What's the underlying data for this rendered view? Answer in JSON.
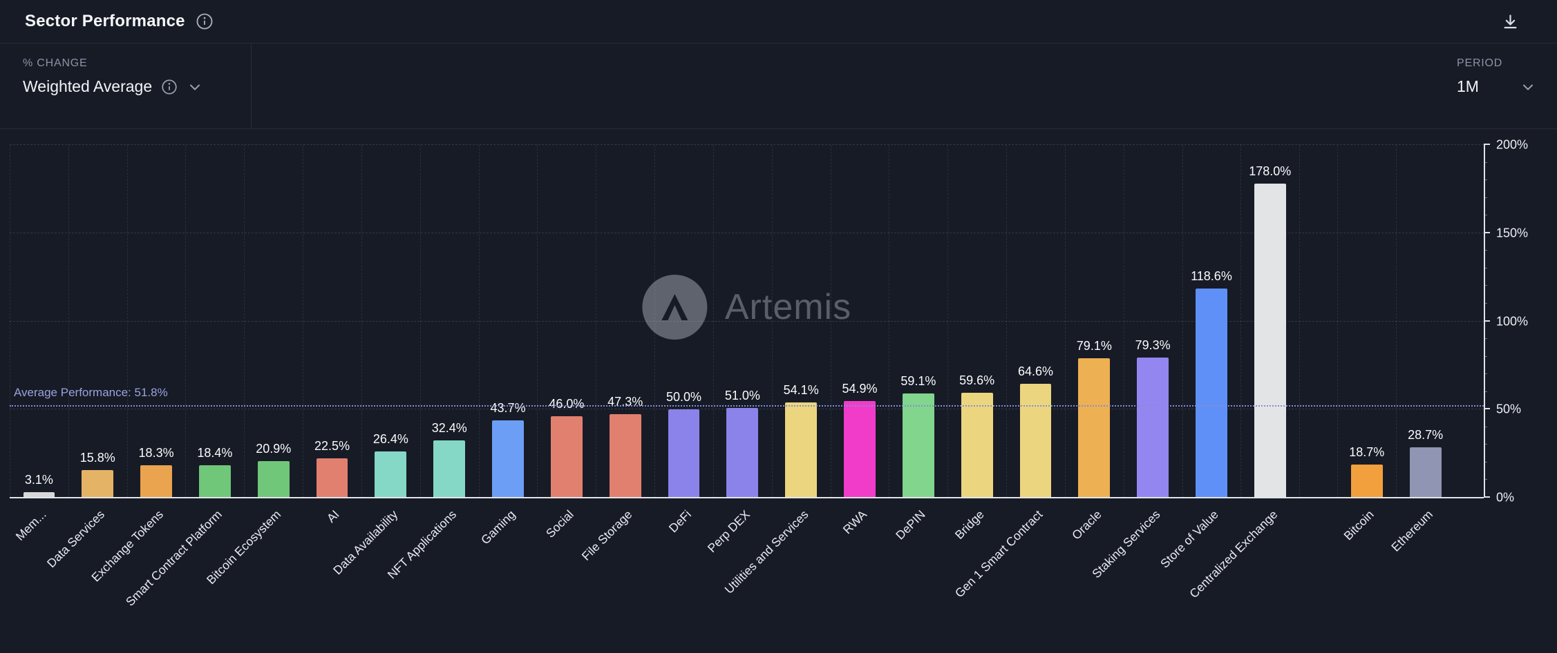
{
  "header": {
    "title": "Sector Performance"
  },
  "controls": {
    "metric": {
      "label": "% CHANGE",
      "value": "Weighted Average"
    },
    "period": {
      "label": "PERIOD",
      "value": "1M"
    }
  },
  "watermark": {
    "text": "Artemis"
  },
  "colors": {
    "background": "#171b26",
    "axis": "#dfe2e8",
    "average_line": "#868dd8",
    "average_label": "#9aa2dd"
  },
  "chart_data": {
    "type": "bar",
    "title": "Sector Performance",
    "ylim": [
      0,
      200
    ],
    "grid": true,
    "legend": "none",
    "y_axis_side": "right",
    "categories": [
      "Mem...",
      "Data Services",
      "Exchange Tokens",
      "Smart Contract Platform",
      "Bitcoin Ecosystem",
      "AI",
      "Data Availability",
      "NFT Applications",
      "Gaming",
      "Social",
      "File Storage",
      "DeFi",
      "Perp DEX",
      "Utilities and Services",
      "RWA",
      "DePIN",
      "Bridge",
      "Gen 1 Smart Contract",
      "Oracle",
      "Staking Services",
      "Store of Value",
      "Centralized Exchange",
      "Bitcoin",
      "Ethereum"
    ],
    "values": [
      3.1,
      15.8,
      18.3,
      18.4,
      20.9,
      22.5,
      26.4,
      32.4,
      43.7,
      46.0,
      47.3,
      50.0,
      51.0,
      54.1,
      54.9,
      59.1,
      59.6,
      64.6,
      79.1,
      79.3,
      118.6,
      178.0,
      18.7,
      28.7
    ],
    "value_labels": [
      "3.1%",
      "15.8%",
      "18.3%",
      "18.4%",
      "20.9%",
      "22.5%",
      "26.4%",
      "32.4%",
      "43.7%",
      "46.0%",
      "47.3%",
      "50.0%",
      "51.0%",
      "54.1%",
      "54.9%",
      "59.1%",
      "59.6%",
      "64.6%",
      "79.1%",
      "79.3%",
      "118.6%",
      "178.0%",
      "18.7%",
      "28.7%"
    ],
    "bar_colors": [
      "#d7d8da",
      "#e5b366",
      "#eaa34f",
      "#70c679",
      "#70c679",
      "#e2806f",
      "#85d7c6",
      "#85d7c6",
      "#6d9ef5",
      "#e2806f",
      "#e2806f",
      "#8b83e9",
      "#8b83e9",
      "#ecd57f",
      "#f03cc9",
      "#82d58c",
      "#ecd57f",
      "#ecd57f",
      "#edb052",
      "#9486f0",
      "#5f90f7",
      "#e3e4e6",
      "#f29f3d",
      "#9095b4"
    ],
    "gap_after": "Centralized Exchange",
    "y_ticks": [
      {
        "value": 0,
        "label": "0%"
      },
      {
        "value": 50,
        "label": "50%"
      },
      {
        "value": 100,
        "label": "100%"
      },
      {
        "value": 150,
        "label": "150%"
      },
      {
        "value": 200,
        "label": "200%"
      }
    ],
    "average_line": {
      "value": 51.8,
      "label": "Average Performance: 51.8%"
    }
  }
}
